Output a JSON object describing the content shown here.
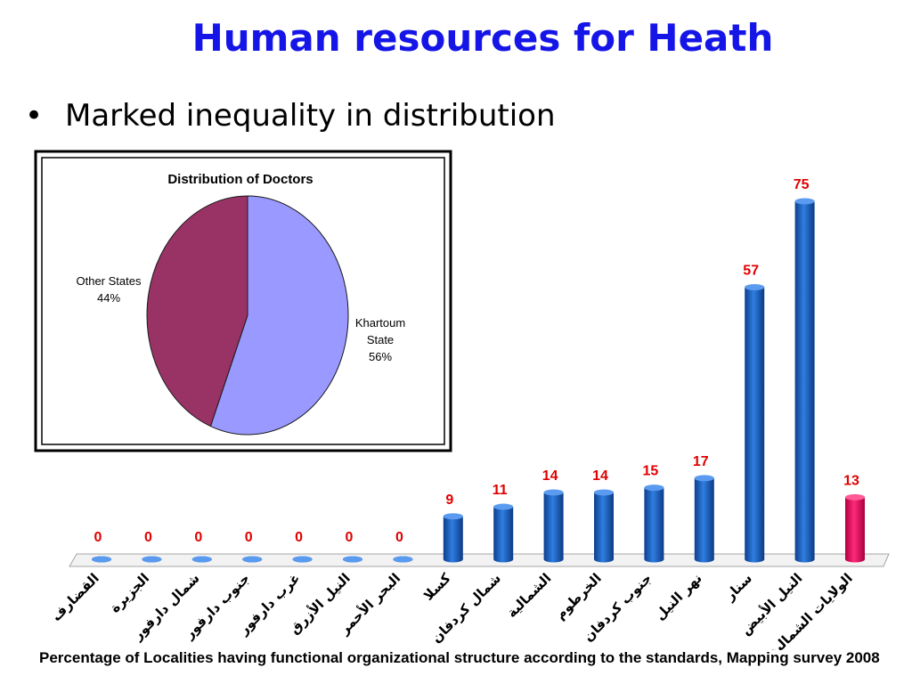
{
  "slide": {
    "title": "Human resources for Heath",
    "bullet": "Marked inequality in distribution",
    "footnote": "Percentage of Localities having functional organizational structure according to the standards, Mapping survey 2008"
  },
  "chart_data": [
    {
      "type": "pie",
      "title": "Distribution of Doctors",
      "slices": [
        {
          "name": "Khartoum State",
          "label_lines": [
            "Khartoum",
            "State"
          ],
          "value": 56,
          "value_label": "56%",
          "color": "#9999ff"
        },
        {
          "name": "Other States",
          "label_lines": [
            "Other States"
          ],
          "value": 44,
          "value_label": "44%",
          "color": "#993366"
        }
      ]
    },
    {
      "type": "bar",
      "categories": [
        "القضارف",
        "الجزيرة",
        "شمال دارفور",
        "جنوب دارفور",
        "غرب دارفور",
        "النيل الأزرق",
        "البحر الأحمر",
        "كسلا",
        "شمال كردفان",
        "الشمالية",
        "الخرطوم",
        "جنوب كردفان",
        "نهر النيل",
        "سنار",
        "النيل الأبيض",
        "الولايات الشمالية"
      ],
      "values": [
        0,
        0,
        0,
        0,
        0,
        0,
        0,
        9,
        11,
        14,
        14,
        15,
        17,
        57,
        75,
        13
      ],
      "ylim": [
        0,
        75
      ],
      "bar_color": "#1a5fc4",
      "highlight_color": "#e8005a",
      "highlight_index": 15,
      "label_color": "#e00000",
      "grid": false,
      "legend": "none"
    }
  ]
}
